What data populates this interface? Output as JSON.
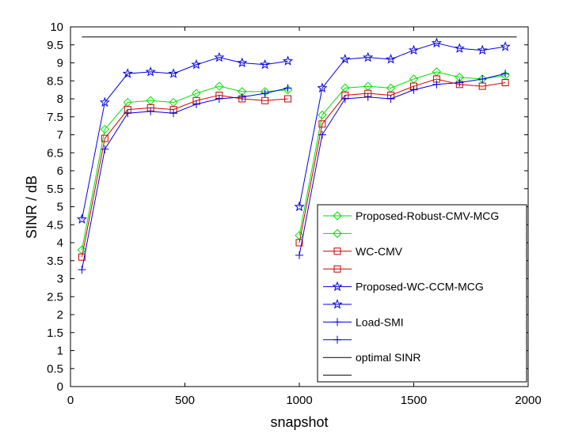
{
  "chart_data": {
    "type": "line",
    "xlabel": "snapshot",
    "ylabel": "SINR / dB",
    "xlim": [
      0,
      2000
    ],
    "ylim": [
      0,
      10
    ],
    "xticks": [
      0,
      500,
      1000,
      1500,
      2000
    ],
    "yticks": [
      0,
      0.5,
      1,
      1.5,
      2,
      2.5,
      3,
      3.5,
      4,
      4.5,
      5,
      5.5,
      6,
      6.5,
      7,
      7.5,
      8,
      8.5,
      9,
      9.5,
      10
    ],
    "grid": false,
    "legend_position": "bottom-right",
    "series": [
      {
        "name": "Proposed-Robust-CMV-MCG",
        "color": "#00e000",
        "marker": "diamond",
        "segments": [
          {
            "x": [
              50,
              150,
              250,
              350,
              450,
              550,
              650,
              750,
              850,
              950
            ],
            "y": [
              3.8,
              7.15,
              7.9,
              7.95,
              7.9,
              8.15,
              8.35,
              8.2,
              8.2,
              8.25
            ]
          },
          {
            "x": [
              1000,
              1100,
              1200,
              1300,
              1400,
              1500,
              1600,
              1700,
              1800,
              1900
            ],
            "y": [
              4.2,
              7.55,
              8.3,
              8.35,
              8.3,
              8.55,
              8.75,
              8.6,
              8.55,
              8.65
            ]
          }
        ]
      },
      {
        "name": "WC-CMV",
        "color": "#cc0000",
        "marker": "square",
        "segments": [
          {
            "x": [
              50,
              150,
              250,
              350,
              450,
              550,
              650,
              750,
              850,
              950
            ],
            "y": [
              3.6,
              6.9,
              7.7,
              7.75,
              7.7,
              7.95,
              8.1,
              8.0,
              7.95,
              8.0
            ]
          },
          {
            "x": [
              1000,
              1100,
              1200,
              1300,
              1400,
              1500,
              1600,
              1700,
              1800,
              1900
            ],
            "y": [
              4.0,
              7.3,
              8.1,
              8.15,
              8.1,
              8.35,
              8.55,
              8.4,
              8.35,
              8.45
            ]
          }
        ]
      },
      {
        "name": "Proposed-WC-CCM-MCG",
        "color": "#0000dd",
        "marker": "star",
        "segments": [
          {
            "x": [
              50,
              150,
              250,
              350,
              450,
              550,
              650,
              750,
              850,
              950
            ],
            "y": [
              4.65,
              7.9,
              8.7,
              8.75,
              8.7,
              8.95,
              9.15,
              9.0,
              8.95,
              9.05
            ]
          },
          {
            "x": [
              1000,
              1100,
              1200,
              1300,
              1400,
              1500,
              1600,
              1700,
              1800,
              1900
            ],
            "y": [
              5.0,
              8.3,
              9.1,
              9.15,
              9.1,
              9.35,
              9.55,
              9.4,
              9.35,
              9.45
            ]
          }
        ]
      },
      {
        "name": "Load-SMI",
        "color": "#0000dd",
        "marker": "plus",
        "segments": [
          {
            "x": [
              50,
              150,
              250,
              350,
              450,
              550,
              650,
              750,
              850,
              950
            ],
            "y": [
              3.25,
              6.6,
              7.6,
              7.65,
              7.6,
              7.85,
              8.0,
              8.05,
              8.15,
              8.3
            ]
          },
          {
            "x": [
              1000,
              1100,
              1200,
              1300,
              1400,
              1500,
              1600,
              1700,
              1800,
              1900
            ],
            "y": [
              3.65,
              7.0,
              8.0,
              8.05,
              8.0,
              8.25,
              8.4,
              8.45,
              8.55,
              8.7
            ]
          }
        ]
      },
      {
        "name": "optimal SINR",
        "color": "#000000",
        "marker": "none",
        "segments": [
          {
            "x": [
              50,
              1950
            ],
            "y": [
              9.72,
              9.72
            ]
          }
        ]
      }
    ]
  }
}
